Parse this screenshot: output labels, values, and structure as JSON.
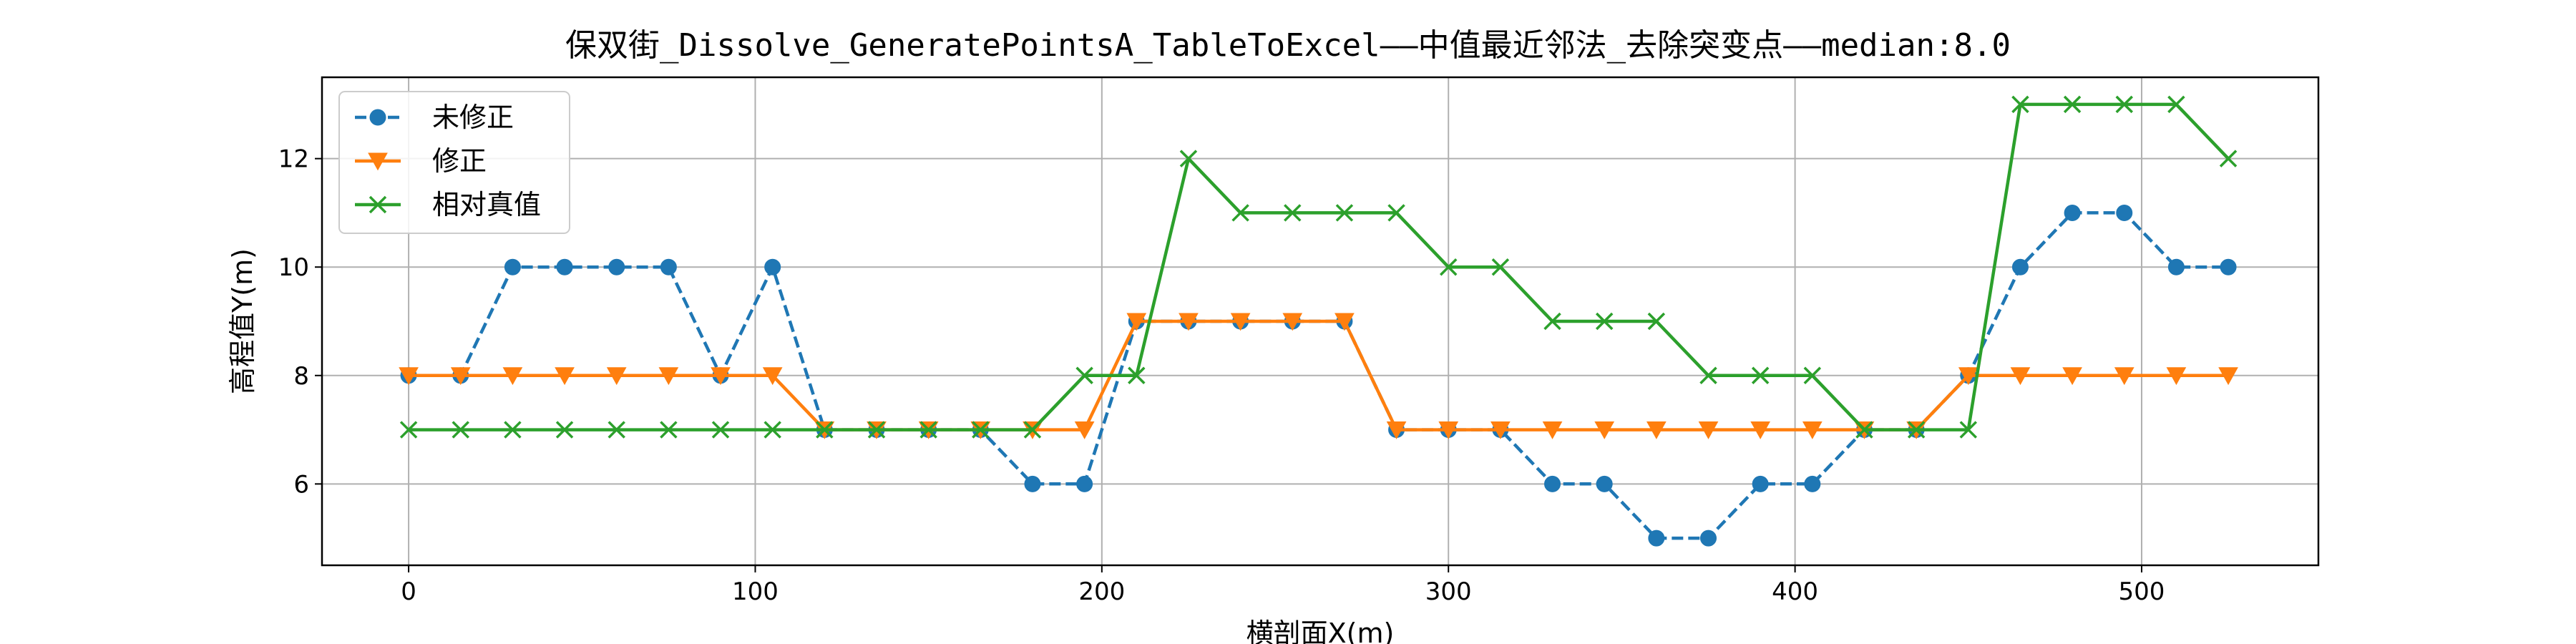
{
  "chart_data": {
    "type": "line",
    "title": "保双街_Dissolve_GeneratePointsA_TableToExcel——中值最近邻法_去除突变点——median:8.0",
    "xlabel": "横剖面X(m)",
    "ylabel": "高程值Y(m)",
    "xlim": [
      -25,
      551
    ],
    "ylim": [
      4.5,
      13.5
    ],
    "xticks": [
      0,
      100,
      200,
      300,
      400,
      500
    ],
    "yticks": [
      6,
      8,
      10,
      12
    ],
    "grid": true,
    "legend_position": "upper-left",
    "x": [
      0,
      15,
      30,
      45,
      60,
      75,
      90,
      105,
      120,
      135,
      150,
      165,
      180,
      195,
      210,
      225,
      240,
      255,
      270,
      285,
      300,
      315,
      330,
      345,
      360,
      375,
      390,
      405,
      420,
      435,
      450,
      465,
      480,
      495,
      510,
      525
    ],
    "series": [
      {
        "name": "未修正",
        "color": "#1f77b4",
        "marker": "circle",
        "linestyle": "dashed",
        "values": [
          8,
          8,
          10,
          10,
          10,
          10,
          8,
          10,
          7,
          7,
          7,
          7,
          6,
          6,
          9,
          9,
          9,
          9,
          9,
          7,
          7,
          7,
          6,
          6,
          5,
          5,
          6,
          6,
          7,
          7,
          8,
          10,
          11,
          11,
          10,
          10
        ]
      },
      {
        "name": "修正",
        "color": "#ff7f0e",
        "marker": "triangle-down",
        "linestyle": "solid",
        "values": [
          8,
          8,
          8,
          8,
          8,
          8,
          8,
          8,
          7,
          7,
          7,
          7,
          7,
          7,
          9,
          9,
          9,
          9,
          9,
          7,
          7,
          7,
          7,
          7,
          7,
          7,
          7,
          7,
          7,
          7,
          8,
          8,
          8,
          8,
          8,
          8
        ]
      },
      {
        "name": "相对真值",
        "color": "#2ca02c",
        "marker": "x",
        "linestyle": "solid",
        "values": [
          7,
          7,
          7,
          7,
          7,
          7,
          7,
          7,
          7,
          7,
          7,
          7,
          7,
          8,
          8,
          12,
          11,
          11,
          11,
          11,
          10,
          10,
          9,
          9,
          9,
          8,
          8,
          8,
          7,
          7,
          7,
          13,
          13,
          13,
          13,
          12
        ]
      }
    ]
  }
}
